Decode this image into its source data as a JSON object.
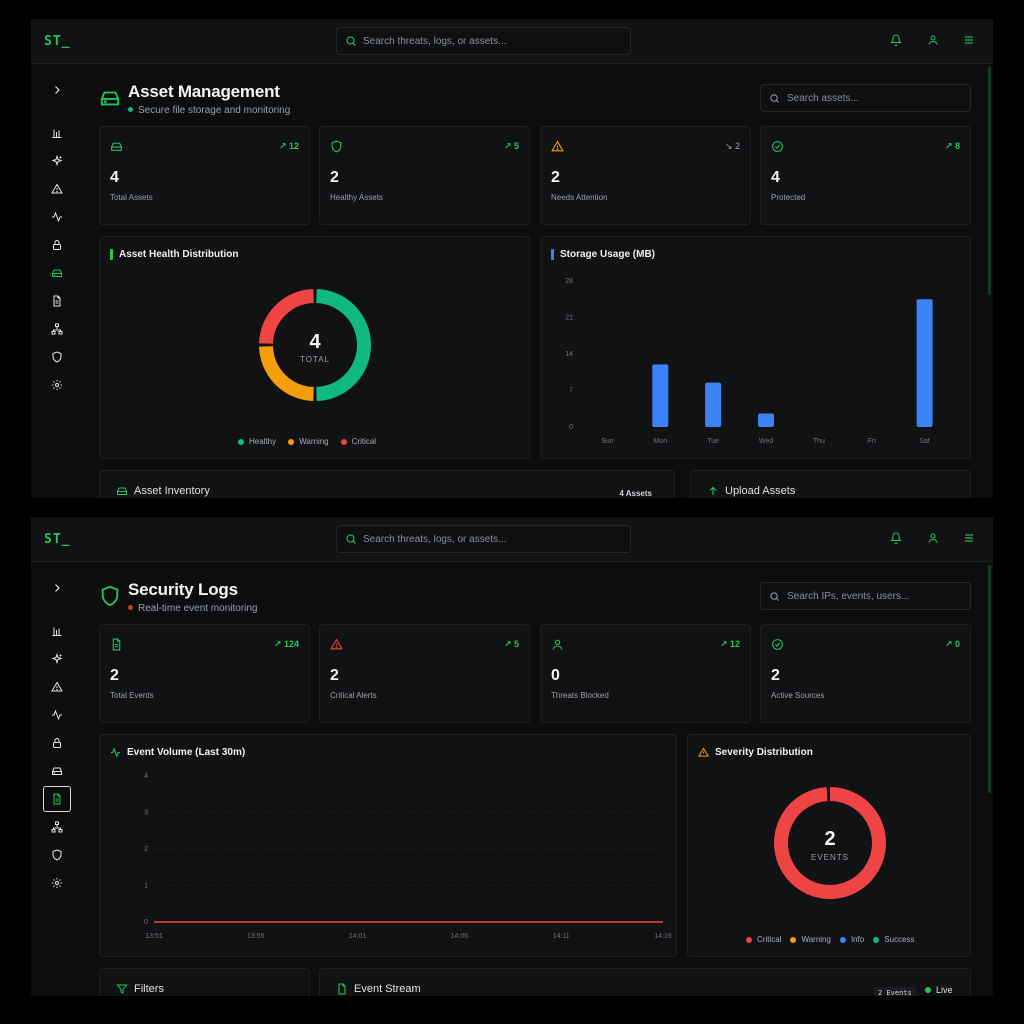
{
  "app": {
    "brand": "ST_",
    "top_search_placeholder": "Search threats, logs, or assets..."
  },
  "colors": {
    "accent": "#22c55e",
    "healthy": "#10b981",
    "warning": "#f59e0b",
    "critical": "#ef4444",
    "info": "#3b82f6",
    "bar": "#3b82f6"
  },
  "sidebar_icons": [
    "chevron-right-icon",
    "bar-chart-icon",
    "sparkle-icon",
    "alert-triangle-icon",
    "activity-icon",
    "lock-icon",
    "hard-drive-icon",
    "file-text-icon",
    "network-icon",
    "shield-icon",
    "settings-icon"
  ],
  "asset": {
    "title": "Asset Management",
    "subtitle": "Secure file storage and monitoring",
    "search_placeholder": "Search assets...",
    "stats": [
      {
        "icon": "hard-drive-icon",
        "trend": "12",
        "value": "4",
        "label": "Total Assets"
      },
      {
        "icon": "shield-icon",
        "trend": "5",
        "value": "2",
        "label": "Healthy Assets"
      },
      {
        "icon": "alert-triangle-icon",
        "trend": "2",
        "value": "2",
        "label": "Needs Attention"
      },
      {
        "icon": "check-circle-icon",
        "trend": "8",
        "value": "4",
        "label": "Protected"
      }
    ],
    "health_title": "Asset Health Distribution",
    "donut_value": "4",
    "donut_label": "TOTAL",
    "legend": [
      "Healthy",
      "Warning",
      "Critical"
    ],
    "storage_title": "Storage Usage (MB)",
    "inventory_title": "Asset Inventory",
    "inventory_count": "4 Assets",
    "upload_title": "Upload Assets"
  },
  "logs": {
    "title": "Security Logs",
    "subtitle": "Real-time event monitoring",
    "search_placeholder": "Search IPs, events, users...",
    "stats": [
      {
        "icon": "file-text-icon",
        "trend": "124",
        "value": "2",
        "label": "Total Events"
      },
      {
        "icon": "alert-triangle-icon",
        "trend": "5",
        "value": "2",
        "label": "Critical Alerts"
      },
      {
        "icon": "user-icon",
        "trend": "12",
        "value": "0",
        "label": "Threats Blocked"
      },
      {
        "icon": "check-circle-icon",
        "trend": "0",
        "value": "2",
        "label": "Active Sources"
      }
    ],
    "volume_title": "Event Volume (Last 30m)",
    "severity_title": "Severity Distribution",
    "donut_value": "2",
    "donut_label": "EVENTS",
    "legend": [
      "Critical",
      "Warning",
      "Info",
      "Success"
    ],
    "filters_title": "Filters",
    "stream_title": "Event Stream",
    "stream_count": "2 Events",
    "live_label": "Live"
  },
  "chart_data": [
    {
      "type": "pie",
      "title": "Asset Health Distribution",
      "categories": [
        "Healthy",
        "Warning",
        "Critical"
      ],
      "values": [
        2,
        1,
        1
      ],
      "center_value": 4
    },
    {
      "type": "bar",
      "title": "Storage Usage (MB)",
      "categories": [
        "Sun",
        "Mon",
        "Tue",
        "Wed",
        "Thu",
        "Fri",
        "Sat"
      ],
      "values": [
        0,
        12,
        8.5,
        2.6,
        0,
        0,
        24.5
      ],
      "yticks": [
        0,
        7,
        14,
        21,
        28
      ],
      "ylim": [
        0,
        28
      ],
      "grid": false
    },
    {
      "type": "line",
      "title": "Event Volume (Last 30m)",
      "x": [
        "13:51",
        "13:56",
        "14:01",
        "14:06",
        "14:11",
        "14:16"
      ],
      "values": [
        0,
        0,
        0,
        0,
        0,
        0
      ],
      "yticks": [
        0,
        1,
        2,
        3,
        4
      ],
      "ylim": [
        0,
        4
      ],
      "grid": true
    },
    {
      "type": "pie",
      "title": "Severity Distribution",
      "categories": [
        "Critical",
        "Warning",
        "Info",
        "Success"
      ],
      "values": [
        2,
        0,
        0,
        0
      ],
      "center_value": 2
    }
  ]
}
